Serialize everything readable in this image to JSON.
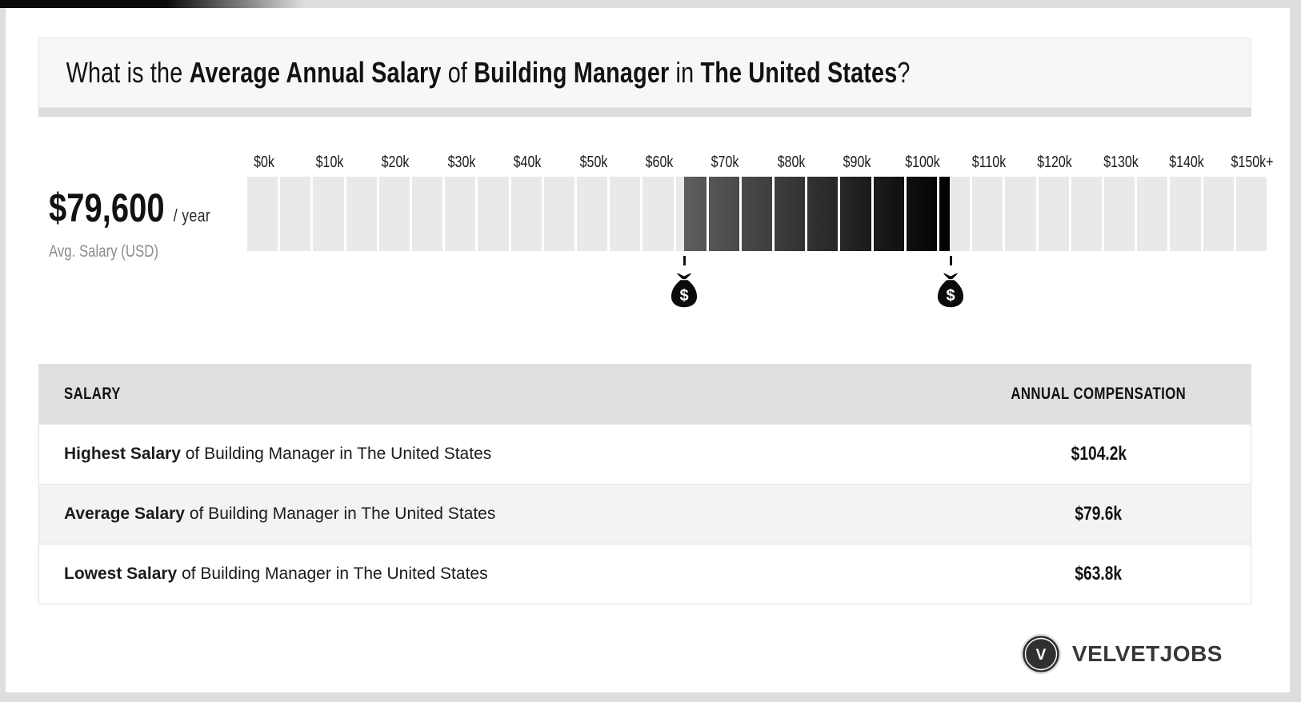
{
  "title": {
    "parts": [
      {
        "text": "What is the ",
        "bold": false
      },
      {
        "text": "Average Annual Salary",
        "bold": true
      },
      {
        "text": " of ",
        "bold": false
      },
      {
        "text": "Building Manager",
        "bold": true
      },
      {
        "text": " in ",
        "bold": false
      },
      {
        "text": "The United States",
        "bold": true
      },
      {
        "text": "?",
        "bold": false
      }
    ]
  },
  "chart_data": {
    "type": "bar",
    "subtype": "salary-range-gauge",
    "title": "Average Annual Salary of Building Manager in The United States",
    "axis": {
      "tick_labels": [
        "$0k",
        "$10k",
        "$20k",
        "$30k",
        "$40k",
        "$50k",
        "$60k",
        "$70k",
        "$80k",
        "$90k",
        "$100k",
        "$110k",
        "$120k",
        "$130k",
        "$140k",
        "$150k+"
      ],
      "min_k": 0,
      "max_k": 150,
      "k_per_cell": 5,
      "cells": 31,
      "grid": "segmented-cells",
      "legend": "none"
    },
    "range": {
      "lowest_k": 63.8,
      "average_k": 79.6,
      "highest_k": 104.2
    },
    "avg_display": {
      "amount": "$79,600",
      "period": "/ year",
      "caption": "Avg. Salary (USD)"
    },
    "marker_icon": "money-bag",
    "marker_glyph": "$",
    "colors": {
      "cell_light": "#e9e9e9",
      "range_start": "#5e5e5e",
      "range_end": "#000000",
      "tick": "#111111"
    }
  },
  "table": {
    "headers": {
      "salary": "SALARY",
      "compensation": "ANNUAL COMPENSATION"
    },
    "rows": [
      {
        "highlight": "Highest Salary",
        "rest": " of Building Manager in The United States",
        "value": "$104.2k"
      },
      {
        "highlight": "Average Salary",
        "rest": " of Building Manager in The United States",
        "value": "$79.6k"
      },
      {
        "highlight": "Lowest Salary",
        "rest": " of Building Manager in The United States",
        "value": "$63.8k"
      }
    ]
  },
  "logo": {
    "monogram": "V",
    "name": "VELVETJOBS"
  }
}
